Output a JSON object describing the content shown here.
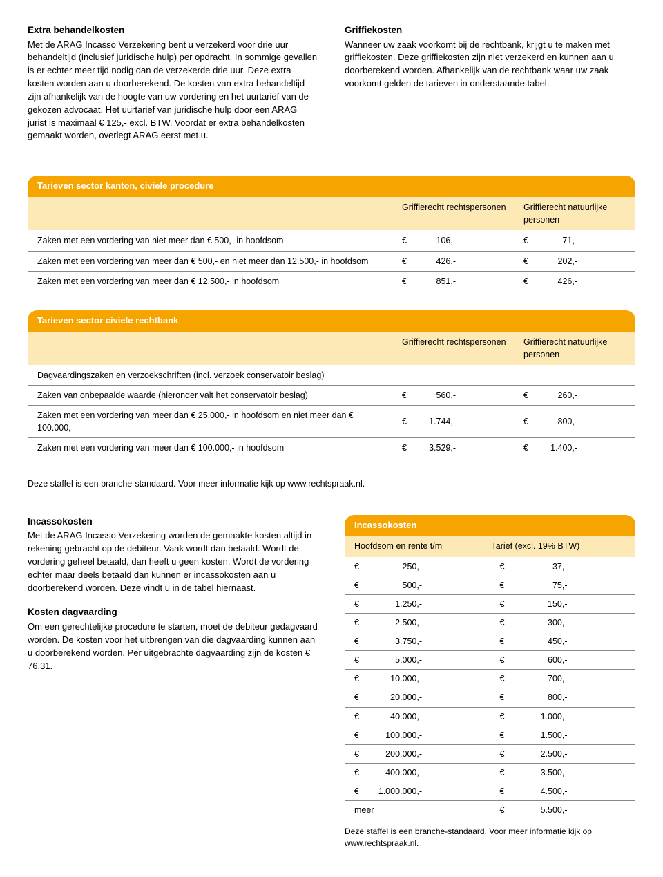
{
  "intro": {
    "left": {
      "title": "Extra behandelkosten",
      "body": "Met de ARAG Incasso Verzekering bent u verzekerd voor drie uur behandeltijd (inclusief juridische hulp) per opdracht. In sommige gevallen is er echter meer tijd nodig dan de verzekerde drie uur. Deze extra kosten worden aan u doorberekend. De kosten van extra behandeltijd zijn afhankelijk van de hoogte van uw vordering en het uurtarief van de gekozen advocaat. Het uurtarief van juridische hulp door een ARAG jurist is maximaal € 125,- excl. BTW. Voordat er extra behandelkosten gemaakt worden, overlegt ARAG eerst met u."
    },
    "right": {
      "title": "Griffiekosten",
      "body": "Wanneer uw zaak voorkomt bij de rechtbank, krijgt u te maken met griffiekosten. Deze griffiekosten zijn niet verzekerd en kunnen aan u doorberekend worden. Afhankelijk van de rechtbank waar uw zaak voorkomt gelden de tarieven in onderstaande tabel."
    }
  },
  "table1": {
    "title": "Tarieven sector kanton, civiele procedure",
    "col1": "Griffierecht rechtspersonen",
    "col2": "Griffierecht natuurlijke personen",
    "rows": [
      {
        "desc": "Zaken met een vordering van niet meer dan € 500,- in hoofdsom",
        "v1": "106,-",
        "v2": "71,-"
      },
      {
        "desc": "Zaken met een vordering van meer dan € 500,- en niet meer dan 12.500,- in hoofdsom",
        "v1": "426,-",
        "v2": "202,-"
      },
      {
        "desc": "Zaken met een vordering van meer dan € 12.500,- in hoofdsom",
        "v1": "851,-",
        "v2": "426,-"
      }
    ]
  },
  "table2": {
    "title": "Tarieven sector civiele rechtbank",
    "col1": "Griffierecht rechtspersonen",
    "col2": "Griffierecht natuurlijke personen",
    "rows": [
      {
        "desc": "Dagvaardingszaken en verzoekschriften (incl. verzoek conservatoir beslag)",
        "v1": "",
        "v2": ""
      },
      {
        "desc": "Zaken van onbepaalde waarde (hieronder valt het conservatoir beslag)",
        "v1": "560,-",
        "v2": "260,-"
      },
      {
        "desc": "Zaken met een vordering van meer dan € 25.000,- in hoofdsom en niet meer dan € 100.000,-",
        "v1": "1.744,-",
        "v2": "800,-"
      },
      {
        "desc": "Zaken met een vordering van meer dan € 100.000,- in hoofdsom",
        "v1": "3.529,-",
        "v2": "1.400,-"
      }
    ]
  },
  "note1": "Deze staffel is een branche-standaard. Voor meer informatie kijk op www.rechtspraak.nl.",
  "bottom": {
    "left": {
      "t1": "Incassokosten",
      "b1": "Met de ARAG Incasso Verzekering worden de gemaakte kosten altijd in rekening gebracht op de debiteur. Vaak wordt dan betaald. Wordt de vordering geheel betaald, dan heeft u geen kosten. Wordt de vordering echter maar deels betaald dan kunnen er incassokosten aan u doorberekend worden. Deze vindt u in de tabel hiernaast.",
      "t2": "Kosten dagvaarding",
      "b2": "Om een gerechtelijke procedure te starten, moet de debiteur gedagvaard worden. De kosten voor het uitbrengen van die dagvaarding kunnen aan u doorberekend worden. Per uitgebrachte dagvaarding zijn de kosten € 76,31."
    },
    "incasso": {
      "title": "Incassokosten",
      "subleft": "Hoofdsom en rente t/m",
      "subright": "Tarief (excl. 19% BTW)",
      "rows": [
        {
          "a": "250,-",
          "b": "37,-"
        },
        {
          "a": "500,-",
          "b": "75,-"
        },
        {
          "a": "1.250,-",
          "b": "150,-"
        },
        {
          "a": "2.500,-",
          "b": "300,-"
        },
        {
          "a": "3.750,-",
          "b": "450,-"
        },
        {
          "a": "5.000,-",
          "b": "600,-"
        },
        {
          "a": "10.000,-",
          "b": "700,-"
        },
        {
          "a": "20.000,-",
          "b": "800,-"
        },
        {
          "a": "40.000,-",
          "b": "1.000,-"
        },
        {
          "a": "100.000,-",
          "b": "1.500,-"
        },
        {
          "a": "200.000,-",
          "b": "2.500,-"
        },
        {
          "a": "400.000,-",
          "b": "3.500,-"
        },
        {
          "a": "1.000.000,-",
          "b": "4.500,-"
        },
        {
          "a": "meer",
          "b": "5.500,-",
          "plain": true
        }
      ],
      "note": "Deze staffel is een branche-standaard. Voor meer informatie kijk op www.rechtspraak.nl."
    }
  }
}
